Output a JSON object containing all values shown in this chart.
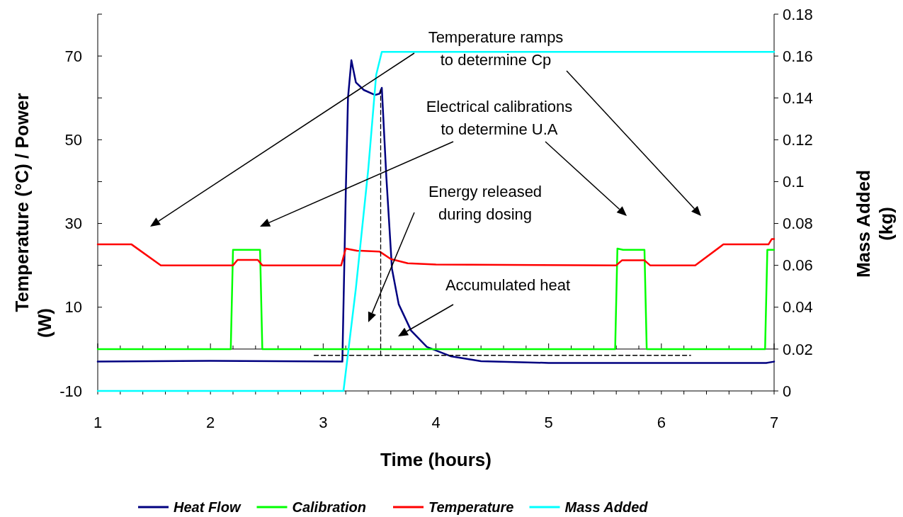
{
  "chart_data": {
    "type": "line",
    "xlabel": "Time (hours)",
    "ylabel": "Temperature (°C) / Power (W)",
    "y2label": "Mass Added (kg)",
    "xlim": [
      1,
      7
    ],
    "xticks": [
      1,
      {
        "value": 1.2,
        "label": null
      },
      {
        "value": 1.4,
        "label": null
      },
      {
        "value": 1.6,
        "label": null
      },
      {
        "value": 1.8,
        "label": null
      },
      2,
      {
        "value": 2.2,
        "label": null
      },
      {
        "value": 2.4,
        "label": null
      },
      {
        "value": 2.6,
        "label": null
      },
      {
        "value": 2.8,
        "label": null
      },
      3,
      {
        "value": 3.2,
        "label": null
      },
      {
        "value": 3.4,
        "label": null
      },
      {
        "value": 3.6,
        "label": null
      },
      {
        "value": 3.8,
        "label": null
      },
      4,
      {
        "value": 4.2,
        "label": null
      },
      {
        "value": 4.4,
        "label": null
      },
      {
        "value": 4.6,
        "label": null
      },
      {
        "value": 4.8,
        "label": null
      },
      5,
      {
        "value": 5.2,
        "label": null
      },
      {
        "value": 5.4,
        "label": null
      },
      {
        "value": 5.6,
        "label": null
      },
      {
        "value": 5.8,
        "label": null
      },
      6,
      {
        "value": 6.2,
        "label": null
      },
      {
        "value": 6.4,
        "label": null
      },
      {
        "value": 6.6,
        "label": null
      },
      {
        "value": 6.8,
        "label": null
      },
      7
    ],
    "ylim": [
      -10,
      80
    ],
    "yticks": [
      -10,
      {
        "value": 0,
        "label": null
      },
      10,
      {
        "value": 20,
        "label": null
      },
      30,
      {
        "value": 40,
        "label": null
      },
      50,
      {
        "value": 60,
        "label": null
      },
      70,
      {
        "value": 80,
        "label": null
      }
    ],
    "y2lim": [
      0,
      0.18
    ],
    "y2ticks": [
      0,
      0.02,
      0.04,
      0.06,
      0.08,
      0.1,
      0.12,
      0.14,
      0.16,
      0.18
    ],
    "legend": "bottom",
    "marker": "none",
    "line_style": "solid",
    "grid": false,
    "annotations": [
      "Temperature ramps\nto determine Cp",
      "Electrical calibrations\nto determine U.A",
      "Energy released\nduring dosing",
      "Accumulated heat"
    ],
    "series": [
      {
        "name": "Heat Flow",
        "color": "#000080",
        "x": [
          1,
          2,
          3.17,
          3.2,
          3.22,
          3.25,
          3.29,
          3.36,
          3.46,
          3.5,
          3.52,
          3.56,
          3.61,
          3.67,
          3.78,
          3.92,
          4.13,
          4.4,
          5,
          6,
          6.93,
          7
        ],
        "values": [
          -3,
          -2.8,
          -3,
          37,
          60,
          69,
          63.7,
          61.9,
          60.7,
          61,
          62.4,
          41.2,
          19.2,
          10.7,
          4.4,
          0.5,
          -1.7,
          -2.9,
          -3.3,
          -3.3,
          -3.3,
          -3
        ]
      },
      {
        "name": "Calibration",
        "color": "#00ff00",
        "x": [
          1,
          2.18,
          2.2,
          2.44,
          2.46,
          5.59,
          5.61,
          5.66,
          5.85,
          5.87,
          6.92,
          6.94,
          7
        ],
        "values": [
          0,
          0,
          23.7,
          23.7,
          0,
          0,
          24,
          23.7,
          23.7,
          0,
          0,
          23.7,
          23.7
        ]
      },
      {
        "name": "Temperature",
        "color": "#ff0000",
        "x": [
          1,
          1.3,
          1.56,
          2.2,
          2.24,
          2.42,
          2.46,
          3.16,
          3.2,
          3.3,
          3.5,
          3.6,
          3.75,
          4,
          5.6,
          5.65,
          5.85,
          5.9,
          6.3,
          6.55,
          6.95,
          6.98,
          7
        ],
        "values": [
          25,
          25,
          20,
          20,
          21.3,
          21.3,
          20,
          20,
          24,
          23.5,
          23.3,
          21.5,
          20.5,
          20.2,
          20,
          21.2,
          21.2,
          20,
          20,
          25,
          25,
          26.3,
          26.3
        ]
      },
      {
        "name": "Mass Added",
        "color": "#00ffff",
        "axis": "y2",
        "x": [
          1,
          3.18,
          3.29,
          3.4,
          3.47,
          3.52,
          7
        ],
        "values": [
          0,
          0,
          0.049,
          0.106,
          0.151,
          0.162,
          0.162
        ]
      },
      {
        "color": "#000000",
        "line_style": "dashed",
        "x": [
          2.92,
          6.26
        ],
        "values": [
          -1.5,
          -1.5
        ]
      },
      {
        "color": "#000000",
        "line_style": "dashed",
        "x": [
          3.51,
          3.51
        ],
        "values": [
          -1.5,
          62
        ]
      }
    ]
  }
}
